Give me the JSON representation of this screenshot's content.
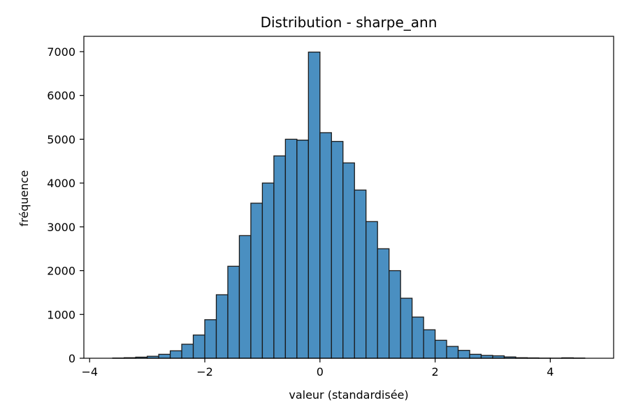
{
  "chart_data": {
    "type": "bar",
    "title": "Distribution - sharpe_ann",
    "xlabel": "valeur (standardisée)",
    "ylabel": "fréquence",
    "xlim": [
      -4.1,
      5.1
    ],
    "ylim": [
      0,
      7350
    ],
    "xticks": [
      -4,
      -2,
      0,
      2,
      4
    ],
    "xtick_labels": [
      "−4",
      "−2",
      "0",
      "2",
      "4"
    ],
    "yticks": [
      0,
      1000,
      2000,
      3000,
      4000,
      5000,
      6000,
      7000
    ],
    "ytick_labels": [
      "0",
      "1000",
      "2000",
      "3000",
      "4000",
      "5000",
      "6000",
      "7000"
    ],
    "grid": false,
    "bar_color": "#4a8fc1",
    "edge_color": "#1a1a1a",
    "bin_edges": [
      -3.6,
      -3.4,
      -3.2,
      -3.0,
      -2.8,
      -2.6,
      -2.4,
      -2.2,
      -2.0,
      -1.8,
      -1.6,
      -1.4,
      -1.2,
      -1.0,
      -0.8,
      -0.6,
      -0.4,
      -0.2,
      0.0,
      0.2,
      0.4,
      0.6,
      0.8,
      1.0,
      1.2,
      1.4,
      1.6,
      1.8,
      2.0,
      2.2,
      2.4,
      2.6,
      2.8,
      3.0,
      3.2,
      3.4,
      3.6,
      3.8,
      4.0,
      4.2,
      4.4,
      4.6
    ],
    "values": [
      5,
      12,
      25,
      45,
      90,
      170,
      320,
      530,
      880,
      1450,
      2100,
      2800,
      3540,
      4000,
      4620,
      5000,
      4980,
      6990,
      5150,
      4950,
      4460,
      3840,
      3120,
      2500,
      2000,
      1370,
      940,
      650,
      410,
      270,
      180,
      90,
      65,
      55,
      30,
      12,
      8,
      3,
      2,
      10,
      5
    ]
  }
}
